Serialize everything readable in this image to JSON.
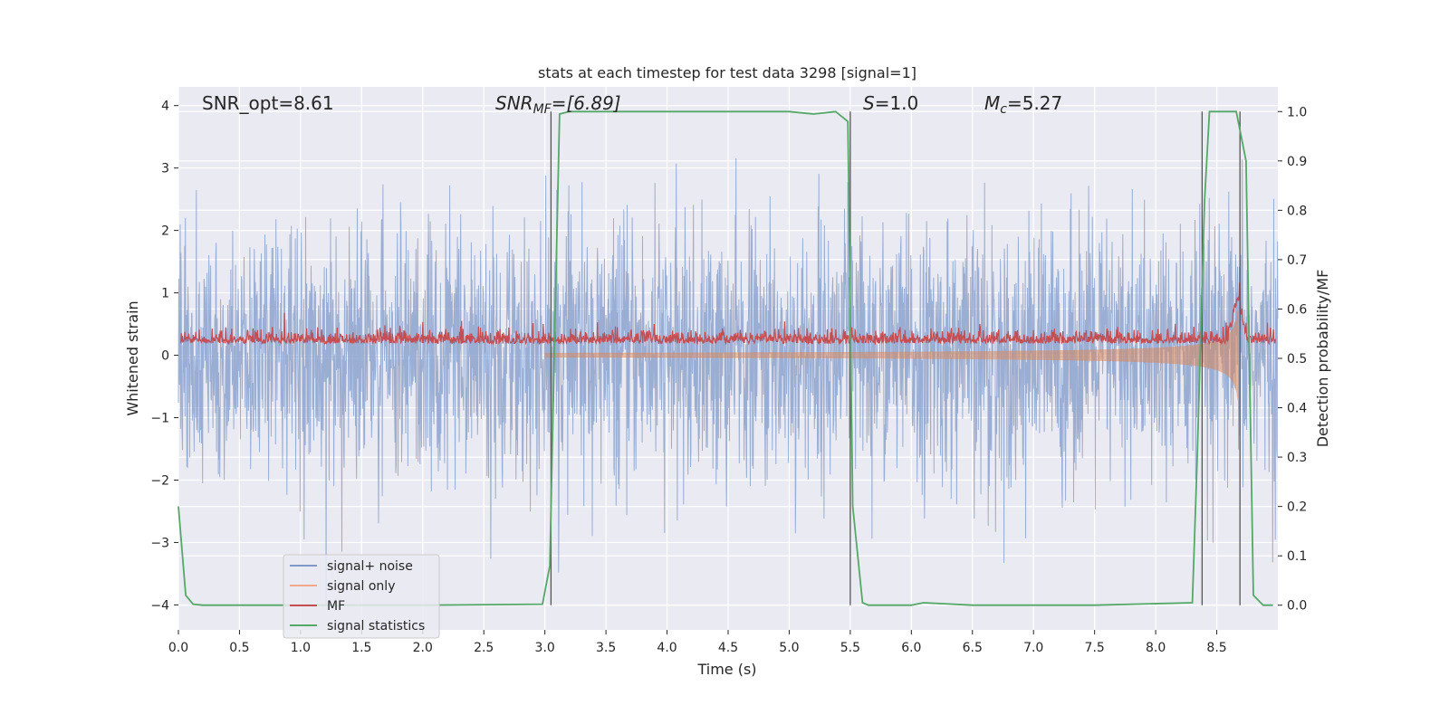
{
  "chart_data": {
    "type": "line",
    "title": "stats at each timestep for test data 3298 [signal=1]",
    "xlabel": "Time (s)",
    "ylabel_left": "Whitened strain",
    "ylabel_right": "Detection probability/MF",
    "xlim": [
      0.0,
      9.0
    ],
    "ylim_left": [
      -4.4,
      4.3
    ],
    "ylim_right": [
      -0.05,
      1.05
    ],
    "x_ticks": [
      "0.0",
      "0.5",
      "1.0",
      "1.5",
      "2.0",
      "2.5",
      "3.0",
      "3.5",
      "4.0",
      "4.5",
      "5.0",
      "5.5",
      "6.0",
      "6.5",
      "7.0",
      "7.5",
      "8.0",
      "8.5"
    ],
    "y_left_ticks": [
      "4",
      "3",
      "2",
      "1",
      "0",
      "−1",
      "−2",
      "−3",
      "−4"
    ],
    "y_right_ticks": [
      "1.0",
      "0.9",
      "0.8",
      "0.7",
      "0.6",
      "0.5",
      "0.4",
      "0.3",
      "0.2",
      "0.1",
      "0.0"
    ],
    "grid": true,
    "legend_position": "lower-left",
    "annotations": {
      "snr_opt": "SNR_opt=8.61",
      "snr_mf_symbol": "SNR",
      "snr_mf_sub": "MF",
      "snr_mf_value": "=[6.89]",
      "s_symbol": "S",
      "s_value": "=1.0",
      "mc_symbol": "M",
      "mc_sub": "c",
      "mc_value": "=5.27"
    },
    "series": [
      {
        "name": "signal+ noise",
        "color": "#7f98c8",
        "axis": "left",
        "description_values": {
          "mean": 0.0,
          "typical_range": [
            -2.2,
            2.6
          ],
          "extremes": [
            -4.0,
            3.9
          ]
        }
      },
      {
        "name": "signal only",
        "color": "#dd8452",
        "axis": "left",
        "chirp_end": 8.68,
        "amplitude_end": 0.9
      },
      {
        "name": "MF",
        "color": "#c44e52",
        "axis": "right",
        "baseline": 0.53,
        "peak_x": 8.67,
        "peak_y": 0.63
      },
      {
        "name": "signal statistics",
        "color": "#55a868",
        "axis": "right",
        "x": [
          0.0,
          0.06,
          0.12,
          0.2,
          1.0,
          2.0,
          2.98,
          3.04,
          3.08,
          3.12,
          3.2,
          4.0,
          5.0,
          5.2,
          5.38,
          5.48,
          5.52,
          5.6,
          5.65,
          6.0,
          6.1,
          6.5,
          7.5,
          8.3,
          8.34,
          8.4,
          8.44,
          8.55,
          8.66,
          8.74,
          8.8,
          8.88,
          8.96
        ],
        "y": [
          0.2,
          0.02,
          0.002,
          0.0,
          0.0,
          0.0,
          0.002,
          0.08,
          0.55,
          0.995,
          1.0,
          1.0,
          1.0,
          0.995,
          1.0,
          0.98,
          0.2,
          0.005,
          0.0,
          0.0,
          0.005,
          0.0,
          0.0,
          0.005,
          0.3,
          0.82,
          1.0,
          1.0,
          1.0,
          0.9,
          0.02,
          0.0,
          0.0
        ]
      }
    ],
    "vertical_lines_x": [
      3.05,
      5.5,
      8.38,
      8.69
    ]
  }
}
